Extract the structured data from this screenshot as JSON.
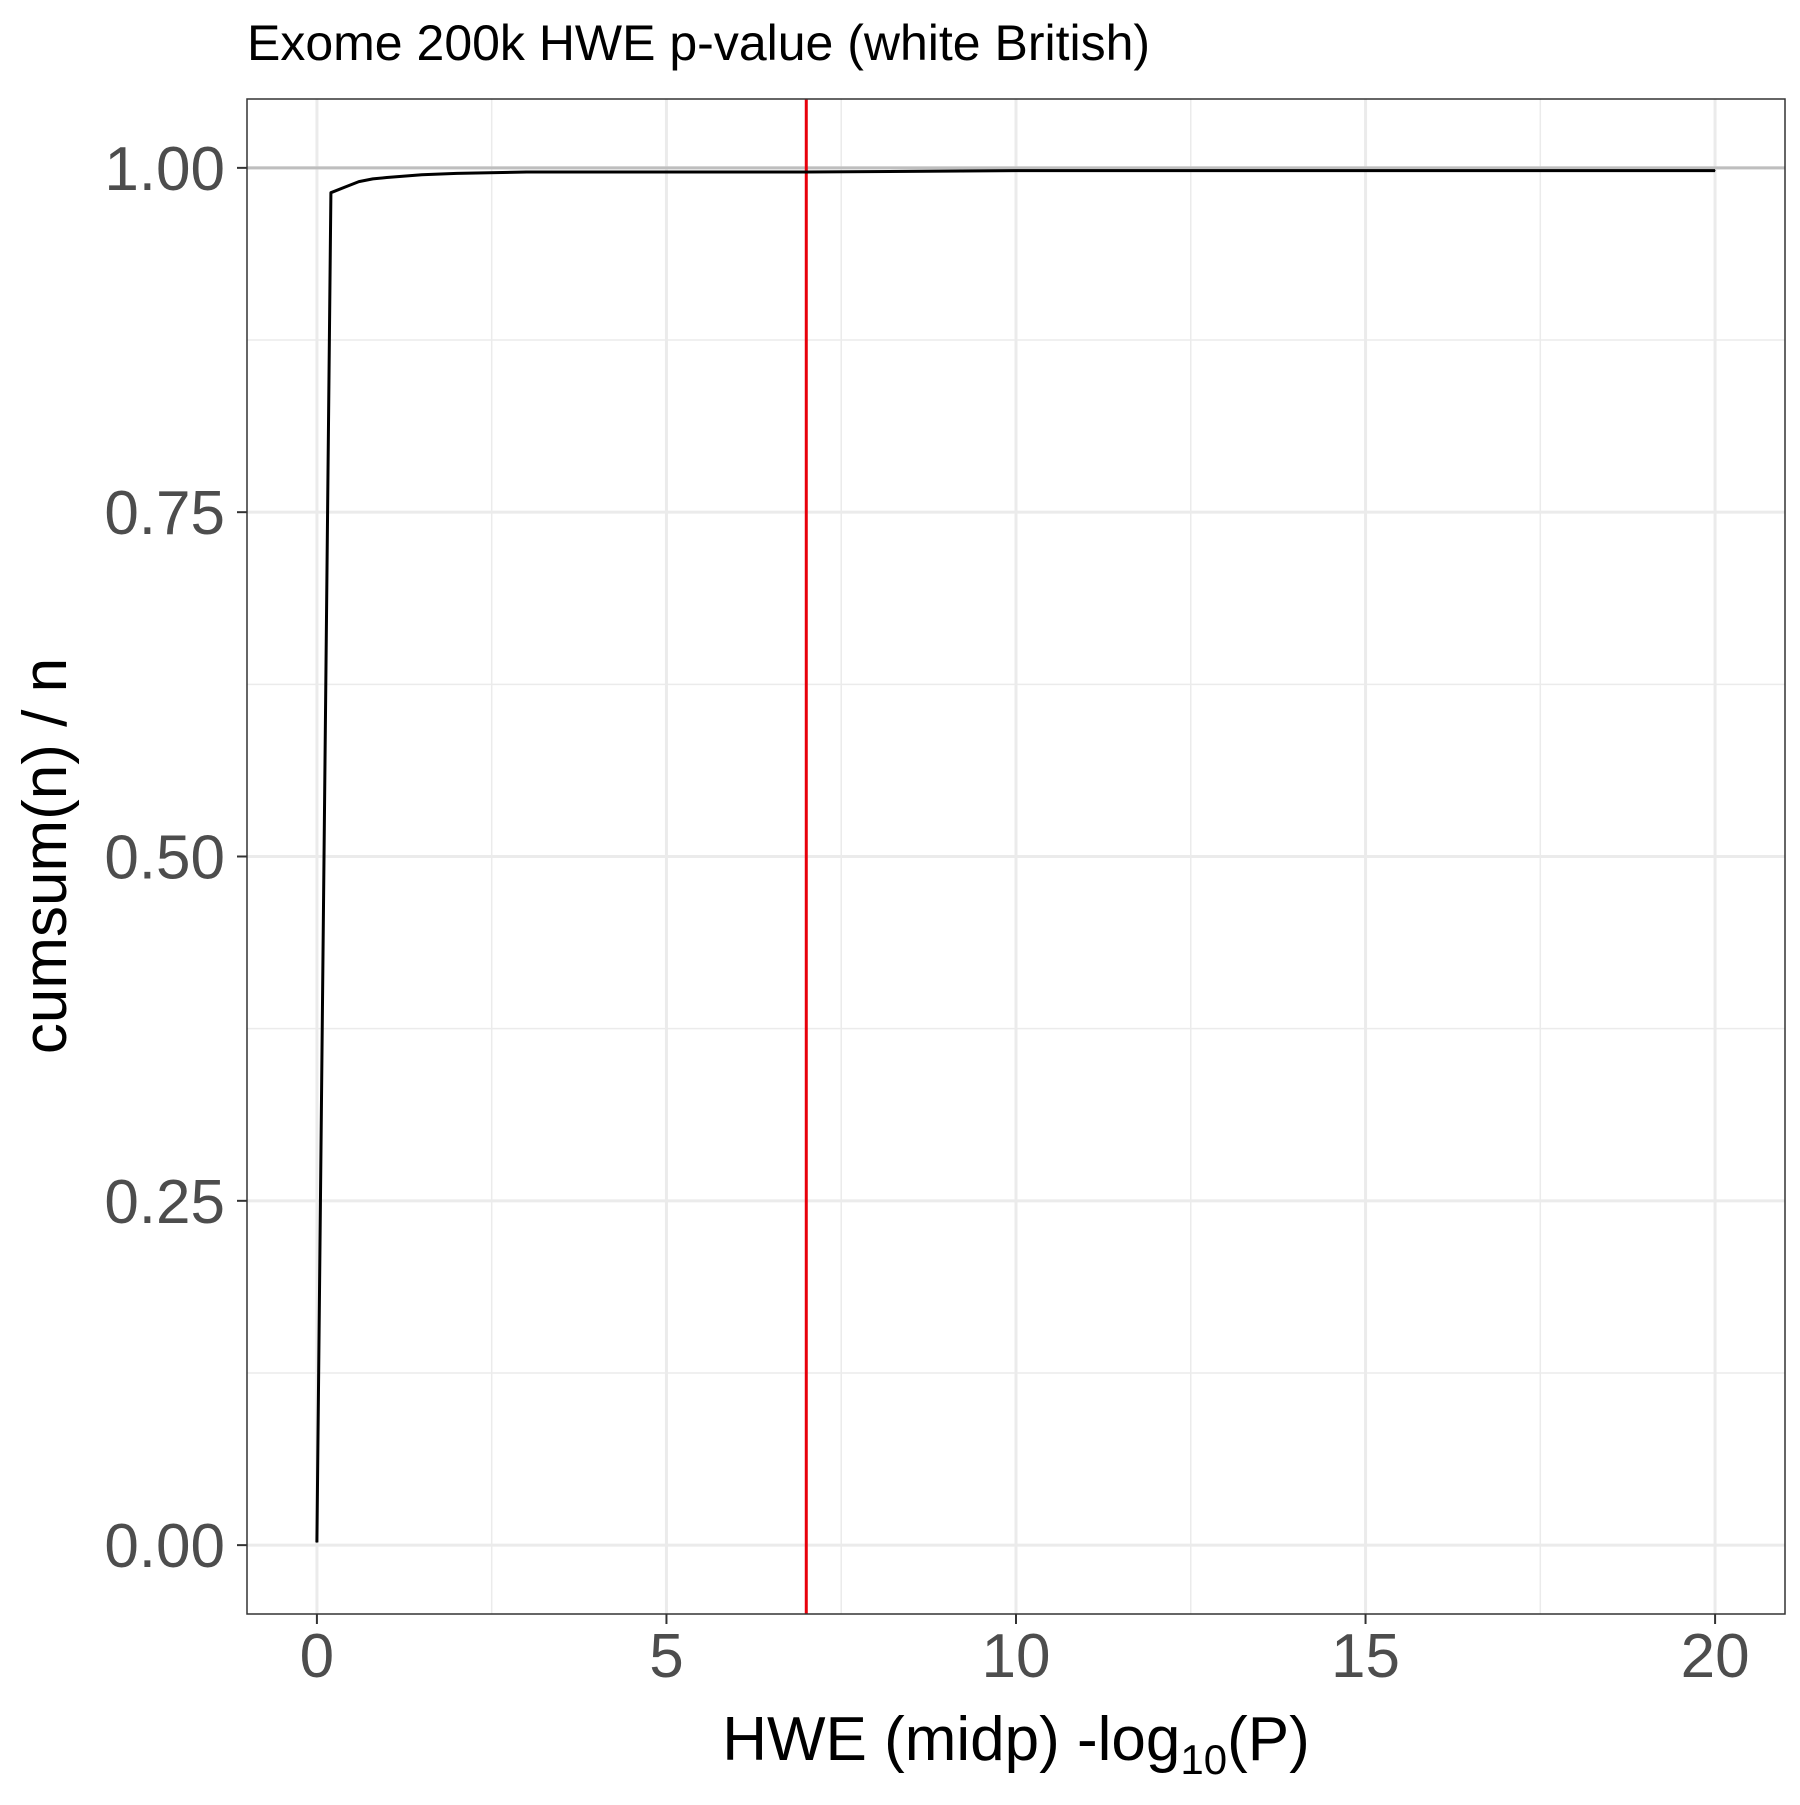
{
  "chart_data": {
    "type": "line",
    "title": "Exome 200k HWE p-value (white British)",
    "xlabel_main": "HWE (midp) -log",
    "xlabel_sub": "10",
    "xlabel_tail": "(P)",
    "ylabel": "cumsum(n) / n",
    "xlim": [
      -1,
      21
    ],
    "ylim": [
      -0.05,
      1.05
    ],
    "x_ticks": [
      0,
      5,
      10,
      15,
      20
    ],
    "x_tick_labels": [
      "0",
      "5",
      "10",
      "15",
      "20"
    ],
    "y_ticks": [
      0,
      0.25,
      0.5,
      0.75,
      1
    ],
    "y_tick_labels": [
      "0.00",
      "0.25",
      "0.50",
      "0.75",
      "1.00"
    ],
    "grid": true,
    "reference_lines": {
      "horizontal": {
        "y": 1.0,
        "color": "#bebebe"
      },
      "vertical": {
        "x": 7,
        "color": "#e8000b"
      }
    },
    "series": [
      {
        "color": "#000000",
        "x": [
          0,
          0.2,
          0.4,
          0.6,
          0.8,
          1.0,
          1.5,
          2,
          3,
          5,
          7,
          10,
          15,
          20
        ],
        "y": [
          0.002,
          0.982,
          0.986,
          0.99,
          0.992,
          0.993,
          0.995,
          0.996,
          0.997,
          0.997,
          0.997,
          0.998,
          0.998,
          0.998
        ]
      }
    ]
  }
}
